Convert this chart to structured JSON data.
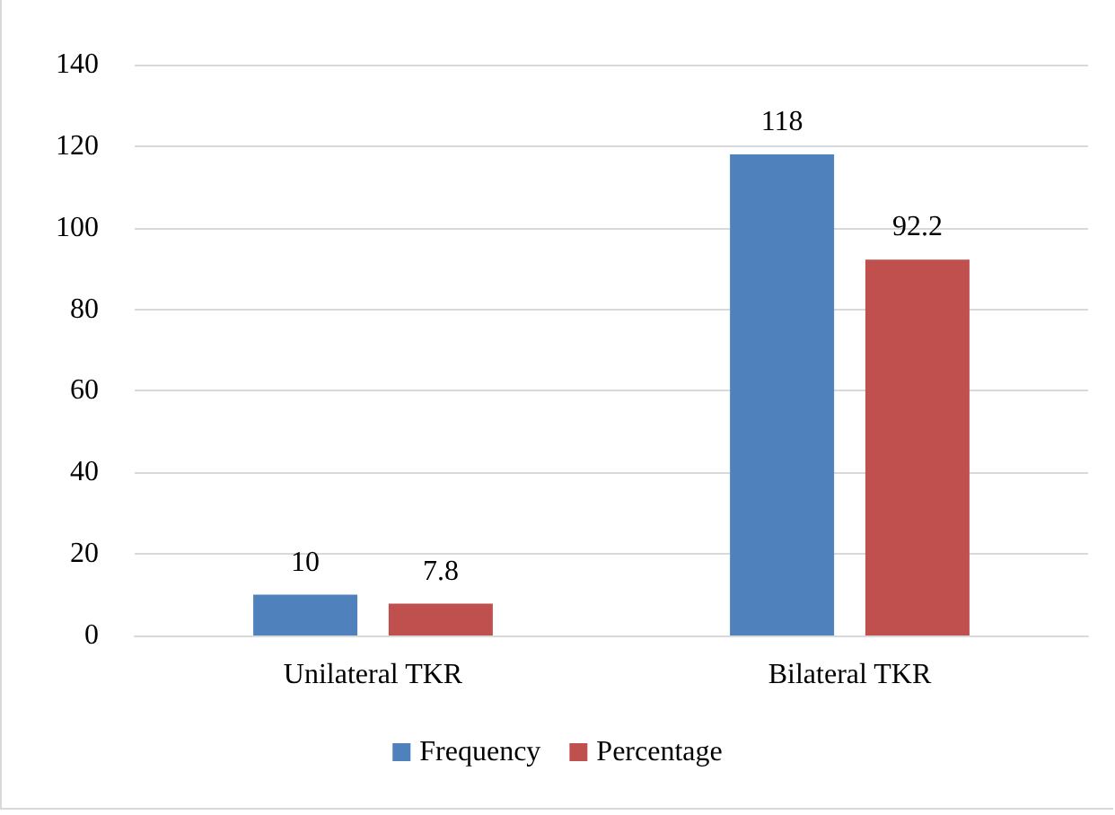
{
  "chart_data": {
    "type": "bar",
    "categories": [
      "Unilateral TKR",
      "Bilateral TKR"
    ],
    "series": [
      {
        "name": "Frequency",
        "color": "#4f81bd",
        "values": [
          10,
          118
        ]
      },
      {
        "name": "Percentage",
        "color": "#c0504d",
        "values": [
          7.8,
          92.2
        ]
      }
    ],
    "ylim": [
      0,
      140
    ],
    "yticks": [
      0,
      20,
      40,
      60,
      80,
      100,
      120,
      140
    ],
    "grid": "y",
    "legend": "bottom",
    "data_labels": true
  }
}
